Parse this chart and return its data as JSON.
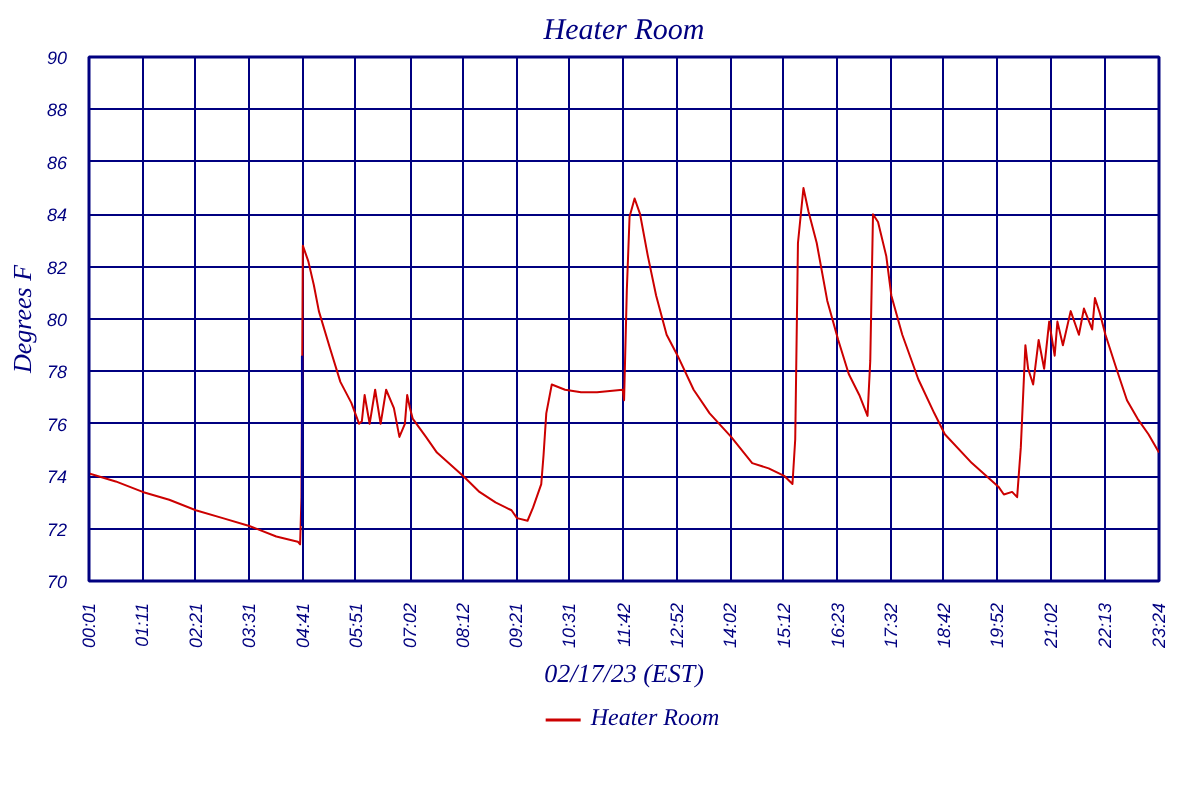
{
  "chart_data": {
    "type": "line",
    "title": "Heater Room",
    "xlabel": "02/17/23 (EST)",
    "ylabel": "Degrees F",
    "xlim": [
      0.0167,
      23.4
    ],
    "ylim": [
      70,
      90
    ],
    "xticks": [
      {
        "value": 0.0167,
        "label": "00:01"
      },
      {
        "value": 1.1833,
        "label": "01:11"
      },
      {
        "value": 2.35,
        "label": "02:21"
      },
      {
        "value": 3.5167,
        "label": "03:31"
      },
      {
        "value": 4.6833,
        "label": "04:41"
      },
      {
        "value": 5.85,
        "label": "05:51"
      },
      {
        "value": 7.0333,
        "label": "07:02"
      },
      {
        "value": 8.2,
        "label": "08:12"
      },
      {
        "value": 9.35,
        "label": "09:21"
      },
      {
        "value": 10.5167,
        "label": "10:31"
      },
      {
        "value": 11.7,
        "label": "11:42"
      },
      {
        "value": 12.8667,
        "label": "12:52"
      },
      {
        "value": 14.0333,
        "label": "14:02"
      },
      {
        "value": 15.2,
        "label": "15:12"
      },
      {
        "value": 16.3833,
        "label": "16:23"
      },
      {
        "value": 17.5333,
        "label": "17:32"
      },
      {
        "value": 18.7,
        "label": "18:42"
      },
      {
        "value": 19.8667,
        "label": "19:52"
      },
      {
        "value": 21.0333,
        "label": "21:02"
      },
      {
        "value": 22.2167,
        "label": "22:13"
      },
      {
        "value": 23.4,
        "label": "23:24"
      }
    ],
    "yticks": [
      70,
      72,
      74,
      76,
      78,
      80,
      82,
      84,
      86,
      88,
      90
    ],
    "grid": true,
    "legend": "bottom",
    "line_style": "solid",
    "marker": "none",
    "series": [
      {
        "name": "Heater Room",
        "color": "#cc0000",
        "x": [
          0.02,
          0.6,
          1.19,
          1.77,
          2.35,
          2.94,
          3.52,
          4.11,
          4.58,
          4.63,
          4.66,
          4.69,
          4.81,
          4.93,
          5.04,
          5.28,
          5.51,
          5.75,
          5.92,
          5.98,
          6.04,
          6.15,
          6.27,
          6.39,
          6.51,
          6.68,
          6.8,
          6.92,
          6.97,
          7.03,
          7.09,
          7.38,
          7.62,
          8.2,
          8.55,
          8.9,
          9.25,
          9.37,
          9.6,
          9.72,
          9.9,
          9.95,
          10.01,
          10.13,
          10.42,
          10.77,
          11.12,
          11.68,
          11.71,
          11.77,
          11.83,
          11.94,
          12.06,
          12.23,
          12.41,
          12.64,
          12.88,
          13.23,
          13.58,
          14.05,
          14.51,
          14.87,
          15.22,
          15.39,
          15.45,
          15.51,
          15.63,
          15.74,
          15.92,
          16.15,
          16.39,
          16.62,
          16.85,
          17.03,
          17.09,
          17.15,
          17.26,
          17.44,
          17.55,
          17.79,
          18.14,
          18.49,
          18.72,
          19.31,
          19.89,
          20.01,
          20.19,
          20.3,
          20.38,
          20.48,
          20.54,
          20.65,
          20.77,
          20.89,
          21.0,
          21.12,
          21.18,
          21.3,
          21.47,
          21.65,
          21.76,
          21.94,
          22.0,
          22.11,
          22.23,
          22.47,
          22.7,
          22.93,
          23.17,
          23.4
        ],
        "values": [
          74.1,
          73.8,
          73.4,
          73.1,
          72.7,
          72.4,
          72.1,
          71.7,
          71.5,
          71.4,
          73.2,
          82.8,
          82.2,
          81.3,
          80.3,
          78.9,
          77.6,
          76.8,
          76.0,
          76.1,
          77.1,
          76.0,
          77.3,
          76.0,
          77.3,
          76.6,
          75.5,
          76.0,
          77.1,
          76.6,
          76.2,
          75.5,
          74.9,
          74.0,
          73.4,
          73.0,
          72.7,
          72.4,
          72.3,
          72.8,
          73.7,
          74.8,
          76.4,
          77.5,
          77.3,
          77.2,
          77.2,
          77.3,
          76.9,
          81.1,
          83.9,
          84.6,
          84.0,
          82.4,
          80.9,
          79.4,
          78.6,
          77.3,
          76.4,
          75.5,
          74.5,
          74.3,
          74.0,
          73.7,
          75.4,
          82.9,
          85.0,
          84.1,
          82.9,
          80.7,
          79.2,
          77.9,
          77.1,
          76.3,
          78.4,
          84.0,
          83.7,
          82.4,
          80.9,
          79.4,
          77.7,
          76.4,
          75.6,
          74.5,
          73.6,
          73.3,
          73.4,
          73.2,
          75.1,
          79.0,
          78.1,
          77.5,
          79.2,
          78.1,
          79.9,
          78.6,
          79.9,
          79.0,
          80.3,
          79.4,
          80.4,
          79.6,
          80.8,
          80.2,
          79.4,
          78.1,
          76.9,
          76.2,
          75.6,
          74.9
        ]
      },
      {
        "color": "#000099",
        "x": [
          4.67,
          4.67
        ],
        "values": [
          72.1,
          78.6
        ]
      }
    ]
  }
}
